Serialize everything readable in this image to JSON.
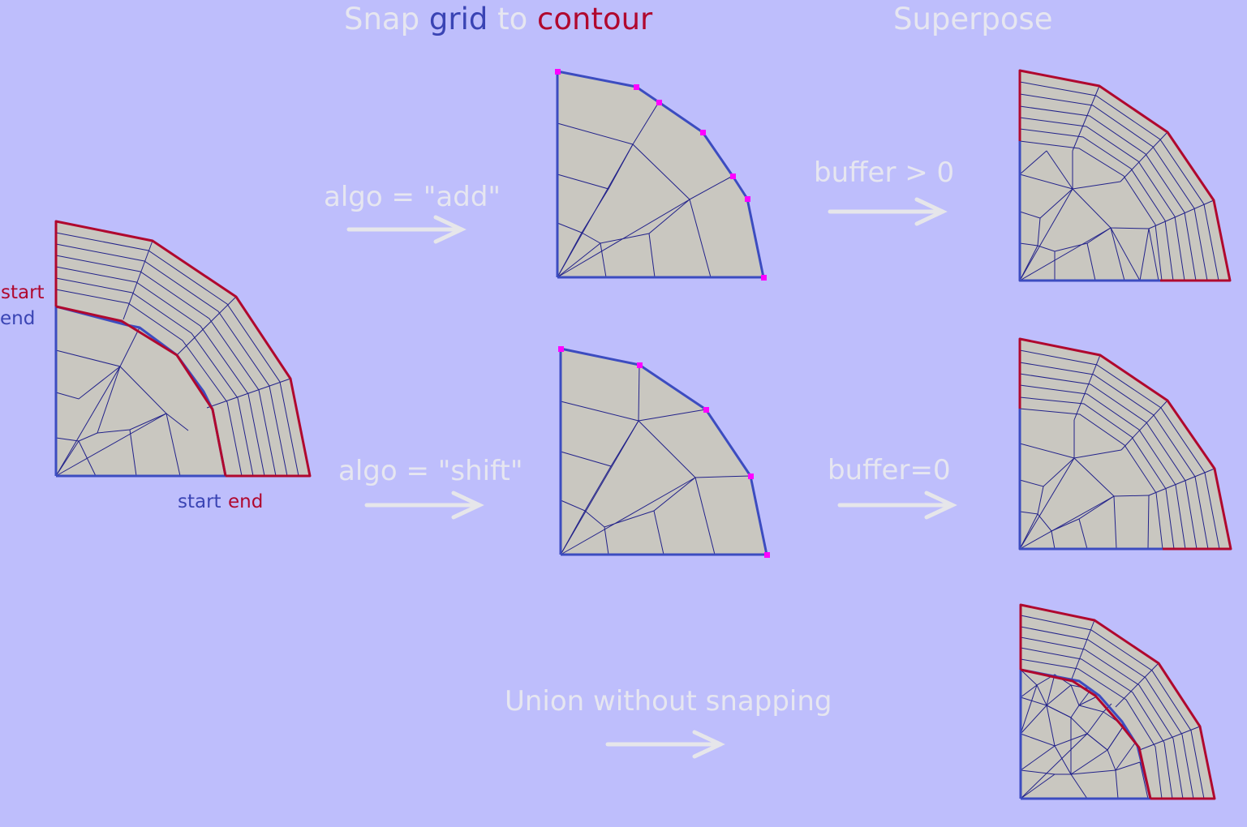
{
  "title": {
    "part1": "Snap",
    "part2": "grid",
    "part3": "to",
    "part4": "contour"
  },
  "superpose_title": "Superpose",
  "left_labels": {
    "start_red": "start",
    "end_blue": "end",
    "start_blue": "start",
    "end_red": "end"
  },
  "arrows": {
    "add": "algo = \"add\"",
    "shift": "algo = \"shift\"",
    "buffer_pos": "buffer > 0",
    "buffer_zero": "buffer=0",
    "union": "Union without snapping"
  },
  "colors": {
    "background": "#bebefc",
    "grid": "#3c4cc0",
    "contour": "#b0082e",
    "mesh_face": "#c9c7c0",
    "mesh_edge": "#22228a",
    "snapped_vertex": "#ff00ff",
    "label_pale": "#e6e6f0"
  }
}
